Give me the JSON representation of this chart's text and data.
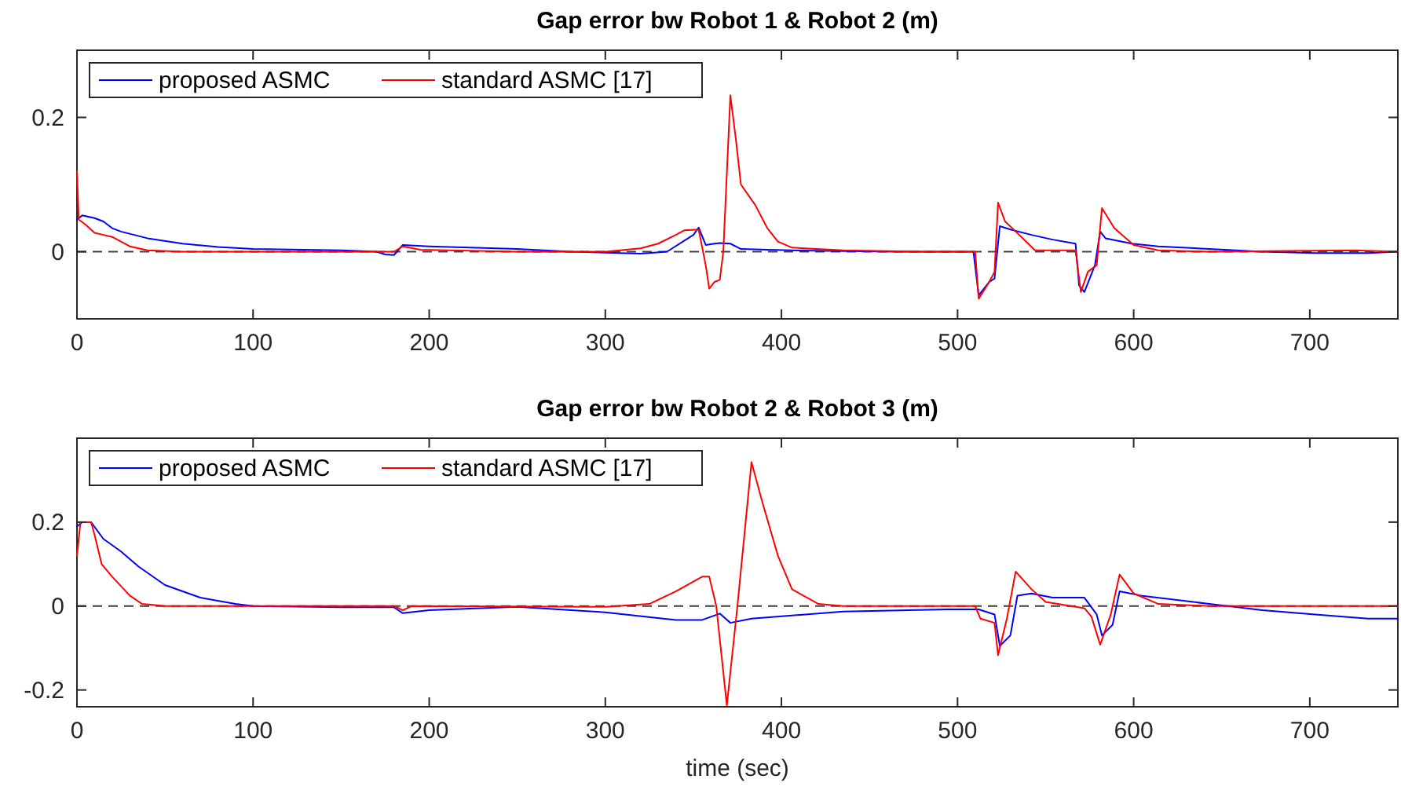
{
  "chart_data": [
    {
      "type": "line",
      "title": "Gap error bw Robot 1 & Robot 2 (m)",
      "xlim": [
        0,
        750
      ],
      "xticks": [
        0,
        100,
        200,
        300,
        400,
        500,
        600,
        700
      ],
      "ylim": [
        -0.1,
        0.3
      ],
      "yticks": [
        0,
        0.2
      ],
      "legend": "top left",
      "grid": false,
      "line_style": "solid",
      "marker": "none",
      "ref_lines": [
        {
          "axis": "y",
          "value": 0,
          "line_style": "dashed",
          "color": "#404040"
        }
      ],
      "series": [
        {
          "name": "proposed ASMC",
          "color": "#0000ff",
          "x": [
            0,
            3,
            10,
            15,
            20,
            25,
            40,
            60,
            80,
            100,
            150,
            170,
            175,
            180,
            185,
            200,
            250,
            280,
            320,
            335,
            350,
            353,
            357,
            362,
            365,
            371,
            377,
            392,
            406,
            435,
            465,
            509,
            512,
            518,
            521,
            524,
            530,
            542,
            554,
            567,
            569,
            572,
            578,
            581,
            584,
            599,
            614,
            643,
            673,
            703,
            733,
            750
          ],
          "values": [
            0.048,
            0.054,
            0.05,
            0.045,
            0.035,
            0.03,
            0.02,
            0.012,
            0.007,
            0.004,
            0.002,
            0,
            -0.004,
            -0.005,
            0.01,
            0.008,
            0.004,
            0,
            -0.003,
            0,
            0.025,
            0.036,
            0.01,
            0.012,
            0.013,
            0.012,
            0.004,
            0.003,
            0.002,
            0.001,
            0,
            0,
            -0.065,
            -0.045,
            -0.04,
            0.038,
            0.033,
            0.025,
            0.018,
            0.012,
            -0.05,
            -0.06,
            -0.02,
            0.03,
            0.02,
            0.012,
            0.008,
            0.004,
            0,
            -0.002,
            -0.002,
            0
          ]
        },
        {
          "name": "standard ASMC [17]",
          "color": "#ff0000",
          "x": [
            0,
            1,
            5,
            10,
            15,
            20,
            25,
            30,
            40,
            60,
            100,
            175,
            180,
            185,
            195,
            250,
            300,
            320,
            330,
            340,
            345,
            353,
            357,
            359,
            362,
            365,
            367,
            371,
            374,
            377,
            385,
            392,
            398,
            406,
            435,
            479,
            510,
            512,
            518,
            521,
            523,
            527,
            535,
            544,
            567,
            570,
            574,
            579,
            582,
            589,
            600,
            614,
            643,
            725,
            750
          ],
          "values": [
            0.12,
            0.048,
            0.04,
            0.028,
            0.025,
            0.022,
            0.015,
            0.008,
            0.002,
            0,
            0,
            0,
            0,
            0.008,
            0.003,
            0,
            0,
            0.005,
            0.012,
            0.025,
            0.032,
            0.033,
            -0.02,
            -0.055,
            -0.045,
            -0.042,
            0,
            0.233,
            0.17,
            0.1,
            0.07,
            0.035,
            0.015,
            0.006,
            0.002,
            0,
            0,
            -0.07,
            -0.045,
            -0.03,
            0.073,
            0.045,
            0.025,
            0.002,
            0.002,
            -0.06,
            -0.03,
            -0.02,
            0.065,
            0.035,
            0.01,
            0.002,
            0,
            0.002,
            0
          ]
        }
      ]
    },
    {
      "type": "line",
      "title": "Gap error bw Robot 2 & Robot 3 (m)",
      "xlabel": "time (sec)",
      "xlim": [
        0,
        750
      ],
      "xticks": [
        0,
        100,
        200,
        300,
        400,
        500,
        600,
        700
      ],
      "ylim": [
        -0.24,
        0.4
      ],
      "yticks": [
        -0.2,
        0,
        0.2
      ],
      "legend": "top left",
      "grid": false,
      "line_style": "solid",
      "marker": "none",
      "ref_lines": [
        {
          "axis": "y",
          "value": 0,
          "line_style": "dashed",
          "color": "#404040"
        }
      ],
      "series": [
        {
          "name": "proposed ASMC",
          "color": "#0000ff",
          "x": [
            0,
            3,
            8,
            15,
            25,
            35,
            50,
            70,
            90,
            100,
            150,
            180,
            185,
            200,
            250,
            300,
            340,
            355,
            365,
            371,
            383,
            435,
            494,
            512,
            521,
            524,
            530,
            534,
            542,
            554,
            572,
            579,
            582,
            588,
            592,
            604,
            643,
            673,
            703,
            733,
            750
          ],
          "values": [
            0.19,
            0.2,
            0.2,
            0.16,
            0.13,
            0.094,
            0.05,
            0.02,
            0.005,
            0,
            -0.003,
            -0.003,
            -0.017,
            -0.01,
            -0.002,
            -0.015,
            -0.033,
            -0.033,
            -0.018,
            -0.04,
            -0.03,
            -0.013,
            -0.008,
            -0.008,
            -0.02,
            -0.095,
            -0.07,
            0.025,
            0.03,
            0.02,
            0.02,
            -0.02,
            -0.07,
            -0.045,
            0.035,
            0.025,
            0.005,
            -0.01,
            -0.02,
            -0.03,
            -0.03
          ]
        },
        {
          "name": "standard ASMC [17]",
          "color": "#ff0000",
          "x": [
            0,
            2,
            8,
            10,
            14,
            20,
            30,
            37,
            50,
            180,
            185,
            190,
            300,
            325,
            340,
            355,
            359,
            363,
            369,
            375,
            383,
            389,
            398,
            406,
            421,
            435,
            510,
            513,
            521,
            523,
            528,
            533,
            542,
            550,
            572,
            576,
            581,
            587,
            592,
            600,
            614,
            643,
            750
          ],
          "values": [
            0.12,
            0.2,
            0.2,
            0.17,
            0.1,
            0.07,
            0.025,
            0.005,
            0,
            0,
            -0.01,
            0,
            -0.002,
            0.005,
            0.035,
            0.07,
            0.07,
            0,
            -0.237,
            0,
            0.343,
            0.25,
            0.12,
            0.04,
            0.005,
            0,
            0,
            -0.03,
            -0.04,
            -0.117,
            -0.03,
            0.082,
            0.04,
            0.01,
            -0.005,
            -0.025,
            -0.092,
            -0.02,
            0.075,
            0.03,
            0.005,
            0,
            0
          ]
        }
      ]
    }
  ]
}
